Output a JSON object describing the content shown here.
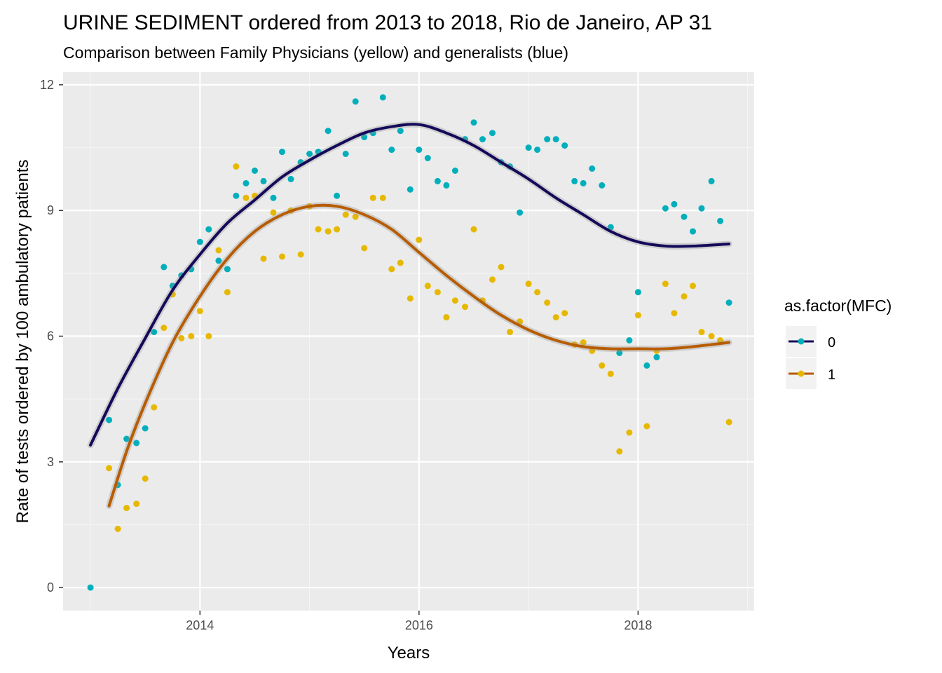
{
  "chart_data": {
    "type": "scatter",
    "title": "URINE SEDIMENT ordered from 2013 to 2018, Rio de Janeiro, AP 31",
    "subtitle": "Comparison between Family Physicians (yellow) and generalists (blue)",
    "xlabel": "Years",
    "ylabel": "Rate of tests ordered by 100 ambulatory patients",
    "xlim": [
      2012.75,
      2019.06
    ],
    "ylim": [
      -0.55,
      12.3
    ],
    "x_ticks": [
      2014,
      2016,
      2018
    ],
    "x_tick_labels": [
      "2014",
      "2016",
      "2018"
    ],
    "y_ticks": [
      0,
      3,
      6,
      9,
      12
    ],
    "y_tick_labels": [
      "0",
      "3",
      "6",
      "9",
      "12"
    ],
    "grid": true,
    "legend": {
      "title": "as.factor(MFC)",
      "position": "right"
    },
    "series": [
      {
        "name": "0",
        "color": "#00AFBB",
        "smooth_color": "#140A5A",
        "points": [
          [
            2013.0,
            0.0
          ],
          [
            2013.17,
            4.0
          ],
          [
            2013.25,
            2.45
          ],
          [
            2013.33,
            3.55
          ],
          [
            2013.42,
            3.45
          ],
          [
            2013.5,
            3.8
          ],
          [
            2013.58,
            6.1
          ],
          [
            2013.67,
            7.65
          ],
          [
            2013.75,
            7.2
          ],
          [
            2013.83,
            7.45
          ],
          [
            2013.92,
            7.6
          ],
          [
            2014.0,
            8.25
          ],
          [
            2014.08,
            8.55
          ],
          [
            2014.17,
            7.8
          ],
          [
            2014.25,
            7.6
          ],
          [
            2014.33,
            9.35
          ],
          [
            2014.42,
            9.65
          ],
          [
            2014.5,
            9.95
          ],
          [
            2014.58,
            9.7
          ],
          [
            2014.67,
            9.3
          ],
          [
            2014.75,
            10.4
          ],
          [
            2014.83,
            9.75
          ],
          [
            2014.92,
            10.15
          ],
          [
            2015.0,
            10.35
          ],
          [
            2015.08,
            10.4
          ],
          [
            2015.17,
            10.9
          ],
          [
            2015.25,
            9.35
          ],
          [
            2015.33,
            10.35
          ],
          [
            2015.42,
            11.6
          ],
          [
            2015.5,
            10.75
          ],
          [
            2015.58,
            10.85
          ],
          [
            2015.67,
            11.7
          ],
          [
            2015.75,
            10.45
          ],
          [
            2015.83,
            10.9
          ],
          [
            2015.92,
            9.5
          ],
          [
            2016.0,
            10.45
          ],
          [
            2016.08,
            10.25
          ],
          [
            2016.17,
            9.7
          ],
          [
            2016.25,
            9.6
          ],
          [
            2016.33,
            9.95
          ],
          [
            2016.42,
            10.7
          ],
          [
            2016.5,
            11.1
          ],
          [
            2016.58,
            10.7
          ],
          [
            2016.67,
            10.85
          ],
          [
            2016.75,
            10.15
          ],
          [
            2016.83,
            10.05
          ],
          [
            2016.92,
            8.95
          ],
          [
            2017.0,
            10.5
          ],
          [
            2017.08,
            10.45
          ],
          [
            2017.17,
            10.7
          ],
          [
            2017.25,
            10.7
          ],
          [
            2017.33,
            10.55
          ],
          [
            2017.42,
            9.7
          ],
          [
            2017.5,
            9.65
          ],
          [
            2017.58,
            10.0
          ],
          [
            2017.67,
            9.6
          ],
          [
            2017.75,
            8.6
          ],
          [
            2017.83,
            5.6
          ],
          [
            2017.92,
            5.9
          ],
          [
            2018.0,
            7.05
          ],
          [
            2018.08,
            5.3
          ],
          [
            2018.17,
            5.5
          ],
          [
            2018.25,
            9.05
          ],
          [
            2018.33,
            9.15
          ],
          [
            2018.42,
            8.85
          ],
          [
            2018.5,
            8.5
          ],
          [
            2018.58,
            9.05
          ],
          [
            2018.67,
            9.7
          ],
          [
            2018.75,
            8.75
          ],
          [
            2018.83,
            6.8
          ]
        ],
        "smooth": [
          [
            2013.0,
            3.4
          ],
          [
            2013.25,
            4.75
          ],
          [
            2013.5,
            5.95
          ],
          [
            2013.75,
            7.1
          ],
          [
            2014.0,
            7.95
          ],
          [
            2014.25,
            8.7
          ],
          [
            2014.5,
            9.25
          ],
          [
            2014.75,
            9.8
          ],
          [
            2015.0,
            10.2
          ],
          [
            2015.25,
            10.55
          ],
          [
            2015.5,
            10.85
          ],
          [
            2015.75,
            11.0
          ],
          [
            2016.0,
            11.05
          ],
          [
            2016.25,
            10.85
          ],
          [
            2016.5,
            10.55
          ],
          [
            2016.75,
            10.15
          ],
          [
            2017.0,
            9.75
          ],
          [
            2017.25,
            9.3
          ],
          [
            2017.5,
            8.9
          ],
          [
            2017.75,
            8.5
          ],
          [
            2018.0,
            8.25
          ],
          [
            2018.25,
            8.15
          ],
          [
            2018.5,
            8.15
          ],
          [
            2018.83,
            8.2
          ]
        ]
      },
      {
        "name": "1",
        "color": "#E7B800",
        "smooth_color": "#B85C00",
        "points": [
          [
            2013.17,
            2.85
          ],
          [
            2013.25,
            1.4
          ],
          [
            2013.33,
            1.9
          ],
          [
            2013.42,
            2.0
          ],
          [
            2013.5,
            2.6
          ],
          [
            2013.58,
            4.3
          ],
          [
            2013.67,
            6.2
          ],
          [
            2013.75,
            7.0
          ],
          [
            2013.83,
            5.95
          ],
          [
            2013.92,
            6.0
          ],
          [
            2014.0,
            6.6
          ],
          [
            2014.08,
            6.0
          ],
          [
            2014.17,
            8.05
          ],
          [
            2014.25,
            7.05
          ],
          [
            2014.33,
            10.05
          ],
          [
            2014.42,
            9.3
          ],
          [
            2014.5,
            9.35
          ],
          [
            2014.58,
            7.85
          ],
          [
            2014.67,
            8.95
          ],
          [
            2014.75,
            7.9
          ],
          [
            2014.83,
            9.0
          ],
          [
            2014.92,
            7.95
          ],
          [
            2015.0,
            9.1
          ],
          [
            2015.08,
            8.55
          ],
          [
            2015.17,
            8.5
          ],
          [
            2015.25,
            8.55
          ],
          [
            2015.33,
            8.9
          ],
          [
            2015.42,
            8.85
          ],
          [
            2015.5,
            8.1
          ],
          [
            2015.58,
            9.3
          ],
          [
            2015.67,
            9.3
          ],
          [
            2015.75,
            7.6
          ],
          [
            2015.83,
            7.75
          ],
          [
            2015.92,
            6.9
          ],
          [
            2016.0,
            8.3
          ],
          [
            2016.08,
            7.2
          ],
          [
            2016.17,
            7.05
          ],
          [
            2016.25,
            6.45
          ],
          [
            2016.33,
            6.85
          ],
          [
            2016.42,
            6.7
          ],
          [
            2016.5,
            8.55
          ],
          [
            2016.58,
            6.85
          ],
          [
            2016.67,
            7.35
          ],
          [
            2016.75,
            7.65
          ],
          [
            2016.83,
            6.1
          ],
          [
            2016.92,
            6.35
          ],
          [
            2017.0,
            7.25
          ],
          [
            2017.08,
            7.05
          ],
          [
            2017.17,
            6.8
          ],
          [
            2017.25,
            6.45
          ],
          [
            2017.33,
            6.55
          ],
          [
            2017.42,
            5.8
          ],
          [
            2017.5,
            5.85
          ],
          [
            2017.58,
            5.65
          ],
          [
            2017.67,
            5.3
          ],
          [
            2017.75,
            5.1
          ],
          [
            2017.83,
            3.25
          ],
          [
            2017.92,
            3.7
          ],
          [
            2018.0,
            6.5
          ],
          [
            2018.08,
            3.85
          ],
          [
            2018.17,
            5.65
          ],
          [
            2018.25,
            7.25
          ],
          [
            2018.33,
            6.55
          ],
          [
            2018.42,
            6.95
          ],
          [
            2018.5,
            7.2
          ],
          [
            2018.58,
            6.1
          ],
          [
            2018.67,
            6.0
          ],
          [
            2018.75,
            5.9
          ],
          [
            2018.83,
            3.95
          ]
        ],
        "smooth": [
          [
            2013.17,
            1.95
          ],
          [
            2013.33,
            3.25
          ],
          [
            2013.5,
            4.4
          ],
          [
            2013.75,
            5.85
          ],
          [
            2014.0,
            6.95
          ],
          [
            2014.25,
            7.85
          ],
          [
            2014.5,
            8.5
          ],
          [
            2014.75,
            8.9
          ],
          [
            2015.0,
            9.1
          ],
          [
            2015.25,
            9.1
          ],
          [
            2015.5,
            8.9
          ],
          [
            2015.75,
            8.55
          ],
          [
            2016.0,
            8.0
          ],
          [
            2016.25,
            7.45
          ],
          [
            2016.5,
            6.95
          ],
          [
            2016.75,
            6.5
          ],
          [
            2017.0,
            6.15
          ],
          [
            2017.25,
            5.9
          ],
          [
            2017.5,
            5.75
          ],
          [
            2017.75,
            5.7
          ],
          [
            2018.0,
            5.7
          ],
          [
            2018.25,
            5.7
          ],
          [
            2018.5,
            5.75
          ],
          [
            2018.83,
            5.85
          ]
        ]
      }
    ]
  }
}
